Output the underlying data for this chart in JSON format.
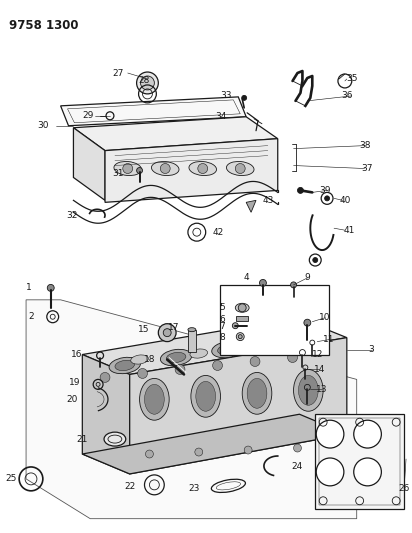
{
  "title": "9758 1300",
  "bg_color": "#ffffff",
  "lc": "#1a1a1a",
  "fig_width": 4.12,
  "fig_height": 5.33,
  "dpi": 100
}
